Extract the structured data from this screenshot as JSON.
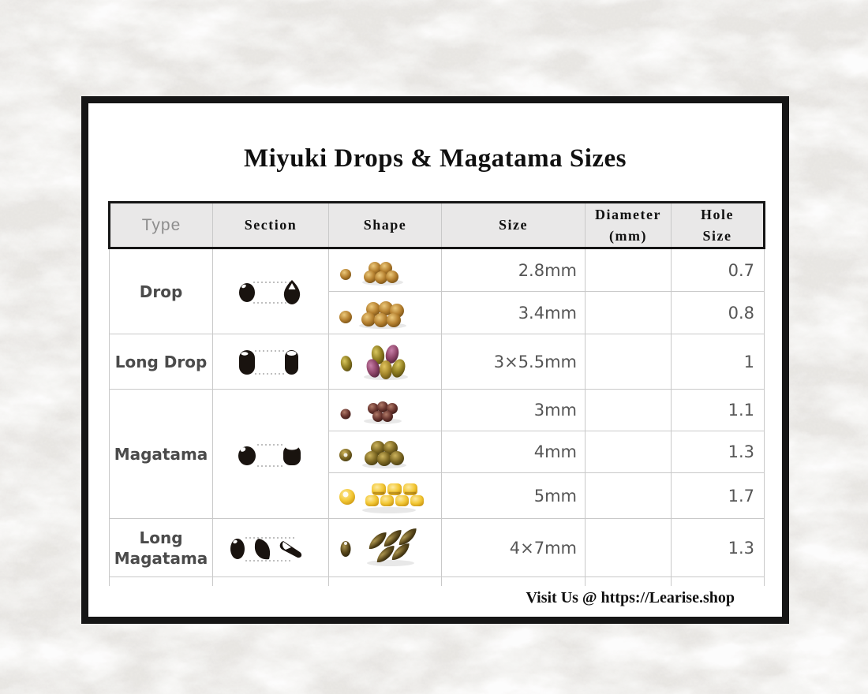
{
  "title": {
    "text": "Miyuki Drops & Magatama Sizes"
  },
  "footer": {
    "text": "Visit Us @ https://Learise.shop"
  },
  "table": {
    "headers": {
      "type": "Type",
      "section": "Section",
      "shape": "Shape",
      "size": "Size",
      "diameter_line1": "Diameter",
      "diameter_line2": "(mm)",
      "hole_line1": "Hole",
      "hole_line2": "Size"
    }
  },
  "rows": [
    {
      "type_label": "Drop",
      "entries": [
        {
          "size": "2.8mm",
          "diameter": "",
          "hole_size": "0.7"
        },
        {
          "size": "3.4mm",
          "diameter": "",
          "hole_size": "0.8"
        }
      ]
    },
    {
      "type_label": "Long Drop",
      "entries": [
        {
          "size": "3×5.5mm",
          "diameter": "",
          "hole_size": "1"
        }
      ]
    },
    {
      "type_label": "Magatama",
      "entries": [
        {
          "size": "3mm",
          "diameter": "",
          "hole_size": "1.1"
        },
        {
          "size": "4mm",
          "diameter": "",
          "hole_size": "1.3"
        },
        {
          "size": "5mm",
          "diameter": "",
          "hole_size": "1.7"
        }
      ]
    },
    {
      "type_label": "Long Magatama",
      "entries": [
        {
          "size": "4×7mm",
          "diameter": "",
          "hole_size": "1.3"
        }
      ]
    }
  ],
  "colors": {
    "frame": "#161616",
    "paper_base": "#ebe9e5",
    "panel_bg": "#ffffff",
    "header_bg": "#e9e8e8",
    "header_border": "#161616",
    "grid_line": "#c9c9c9",
    "header_text": "#111111",
    "type_header_text": "#8d8d8d",
    "type_text": "#4b4b4b",
    "value_text": "#565656",
    "title_text": "#101010",
    "footer_text": "#101010",
    "section_icon": "#19130f",
    "dotted_line": "#bfbfbf"
  },
  "bead_palettes": {
    "amber": {
      "light": "#ecc97b",
      "base": "#b5802f",
      "dark": "#6f4a12"
    },
    "olive": {
      "light": "#d9c75e",
      "base": "#8f7d20",
      "dark": "#4f430e"
    },
    "purple": {
      "light": "#c77fa8",
      "base": "#8e4468",
      "dark": "#4a1f36"
    },
    "gold": {
      "light": "#e3c55e",
      "base": "#a5872a",
      "dark": "#5c4a10"
    },
    "plum": {
      "light": "#b07a68",
      "base": "#69352f",
      "dark": "#351713"
    },
    "bronze": {
      "light": "#cdb45d",
      "base": "#7c6722",
      "dark": "#3f350e"
    },
    "yellow": {
      "light": "#fdeaa2",
      "base": "#f3c836",
      "dark": "#c8920e"
    },
    "darkbronze": {
      "light": "#ab944e",
      "base": "#57461a",
      "dark": "#241c06"
    }
  }
}
